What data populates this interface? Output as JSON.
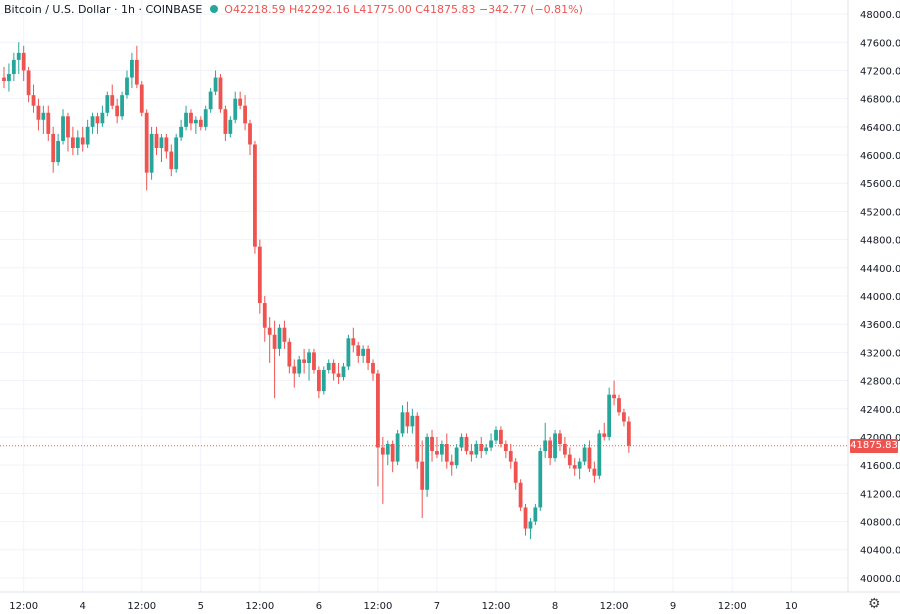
{
  "legend": {
    "symbol": "Bitcoin / U.S. Dollar · 1h · COINBASE",
    "ohlc": "O42218.59  H42292.16  L41775.00  C41875.83  −342.77 (−0.81%)"
  },
  "last_price_label": "41875.83",
  "colors": {
    "up": "#26a69a",
    "down": "#ef5350",
    "grid": "#f0f3fa",
    "axis_text": "#131722"
  },
  "settings_icon": "gear-icon",
  "chart_data": {
    "type": "candlestick",
    "title": "",
    "xlabel": "",
    "ylabel": "",
    "ylim": [
      39800,
      48200
    ],
    "y_ticks": [
      40000,
      40400,
      40800,
      41200,
      41600,
      42000,
      42400,
      42800,
      43200,
      43600,
      44000,
      44400,
      44800,
      45200,
      45600,
      46000,
      46400,
      46800,
      47200,
      47600,
      48000
    ],
    "y_tick_labels": [
      "40000.00",
      "40400.00",
      "40800.00",
      "41200.00",
      "41600.00",
      "42000.00",
      "42400.00",
      "42800.00",
      "43200.00",
      "43600.00",
      "44000.00",
      "44400.00",
      "44800.00",
      "45200.00",
      "45600.00",
      "46000.00",
      "46400.00",
      "46800.00",
      "47200.00",
      "47600.00",
      "48000.00"
    ],
    "x_ticks": [
      {
        "label": "12:00",
        "bar": 4
      },
      {
        "label": "4",
        "bar": 16
      },
      {
        "label": "12:00",
        "bar": 28
      },
      {
        "label": "5",
        "bar": 40
      },
      {
        "label": "12:00",
        "bar": 52
      },
      {
        "label": "6",
        "bar": 64
      },
      {
        "label": "12:00",
        "bar": 76
      },
      {
        "label": "7",
        "bar": 88
      },
      {
        "label": "12:00",
        "bar": 100
      },
      {
        "label": "8",
        "bar": 112
      },
      {
        "label": "12:00",
        "bar": 124
      },
      {
        "label": "9",
        "bar": 136
      },
      {
        "label": "12:00",
        "bar": 148
      },
      {
        "label": "10",
        "bar": 160
      }
    ],
    "last_price": 41875.83,
    "series": [
      {
        "values": [
          [
            47100,
            47250,
            46950,
            47050
          ],
          [
            47050,
            47300,
            46900,
            47150
          ],
          [
            47150,
            47450,
            47050,
            47350
          ],
          [
            47350,
            47600,
            47150,
            47450
          ],
          [
            47450,
            47550,
            47050,
            47200
          ],
          [
            47200,
            47250,
            46750,
            46850
          ],
          [
            46850,
            47000,
            46600,
            46700
          ],
          [
            46700,
            46800,
            46350,
            46500
          ],
          [
            46500,
            46700,
            46300,
            46600
          ],
          [
            46600,
            46700,
            46200,
            46300
          ],
          [
            46300,
            46400,
            45750,
            45900
          ],
          [
            45900,
            46300,
            45850,
            46200
          ],
          [
            46200,
            46650,
            46150,
            46550
          ],
          [
            46550,
            46600,
            46050,
            46250
          ],
          [
            46250,
            46400,
            46000,
            46100
          ],
          [
            46100,
            46350,
            46000,
            46250
          ],
          [
            46250,
            46400,
            46050,
            46150
          ],
          [
            46150,
            46500,
            46100,
            46400
          ],
          [
            46400,
            46600,
            46300,
            46550
          ],
          [
            46550,
            46600,
            46300,
            46450
          ],
          [
            46450,
            46700,
            46400,
            46600
          ],
          [
            46600,
            46900,
            46550,
            46850
          ],
          [
            46850,
            47000,
            46650,
            46700
          ],
          [
            46700,
            46800,
            46450,
            46550
          ],
          [
            46550,
            46900,
            46500,
            46850
          ],
          [
            46850,
            47200,
            46800,
            47100
          ],
          [
            47100,
            47450,
            46950,
            47350
          ],
          [
            47350,
            47550,
            46950,
            47000
          ],
          [
            47000,
            47050,
            46550,
            46600
          ],
          [
            46600,
            46650,
            45500,
            45750
          ],
          [
            45750,
            46400,
            45650,
            46300
          ],
          [
            46300,
            46400,
            46000,
            46100
          ],
          [
            46100,
            46300,
            45900,
            46250
          ],
          [
            46250,
            46300,
            45950,
            46050
          ],
          [
            46050,
            46150,
            45700,
            45800
          ],
          [
            45800,
            46300,
            45750,
            46250
          ],
          [
            46250,
            46500,
            46200,
            46400
          ],
          [
            46400,
            46700,
            46350,
            46600
          ],
          [
            46600,
            46650,
            46350,
            46450
          ],
          [
            46450,
            46550,
            46300,
            46500
          ],
          [
            46500,
            46550,
            46350,
            46400
          ],
          [
            46400,
            46700,
            46350,
            46650
          ],
          [
            46650,
            46950,
            46600,
            46900
          ],
          [
            46900,
            47200,
            46850,
            47100
          ],
          [
            47100,
            47150,
            46600,
            46650
          ],
          [
            46650,
            46700,
            46200,
            46300
          ],
          [
            46300,
            46550,
            46250,
            46500
          ],
          [
            46500,
            46900,
            46450,
            46800
          ],
          [
            46800,
            46900,
            46650,
            46700
          ],
          [
            46700,
            46850,
            46350,
            46450
          ],
          [
            46450,
            46500,
            46000,
            46150
          ],
          [
            46150,
            46200,
            44600,
            44700
          ],
          [
            44700,
            44800,
            43750,
            43900
          ],
          [
            43900,
            44000,
            43350,
            43550
          ],
          [
            43550,
            43700,
            43050,
            43450
          ],
          [
            43450,
            43650,
            42550,
            43250
          ],
          [
            43250,
            43600,
            43150,
            43550
          ],
          [
            43550,
            43650,
            43250,
            43350
          ],
          [
            43350,
            43400,
            42900,
            43000
          ],
          [
            43000,
            43100,
            42700,
            42900
          ],
          [
            42900,
            43150,
            42850,
            43100
          ],
          [
            43100,
            43250,
            42900,
            43050
          ],
          [
            43050,
            43250,
            42800,
            43200
          ],
          [
            43200,
            43250,
            42900,
            42950
          ],
          [
            42950,
            43000,
            42550,
            42650
          ],
          [
            42650,
            43000,
            42600,
            42950
          ],
          [
            42950,
            43100,
            42900,
            43050
          ],
          [
            43050,
            43100,
            42800,
            42900
          ],
          [
            42900,
            43050,
            42750,
            42850
          ],
          [
            42850,
            43050,
            42800,
            43000
          ],
          [
            43000,
            43450,
            42950,
            43400
          ],
          [
            43400,
            43550,
            43200,
            43300
          ],
          [
            43300,
            43350,
            43050,
            43150
          ],
          [
            43150,
            43300,
            43050,
            43250
          ],
          [
            43250,
            43300,
            42950,
            43050
          ],
          [
            43050,
            43100,
            42800,
            42900
          ],
          [
            42900,
            42950,
            41300,
            41850
          ],
          [
            41850,
            42000,
            41050,
            41750
          ],
          [
            41750,
            41950,
            41600,
            41900
          ],
          [
            41900,
            41950,
            41500,
            41650
          ],
          [
            41650,
            42100,
            41600,
            42050
          ],
          [
            42050,
            42450,
            42000,
            42350
          ],
          [
            42350,
            42500,
            42050,
            42150
          ],
          [
            42150,
            42400,
            42050,
            42300
          ],
          [
            42300,
            42350,
            41550,
            41650
          ],
          [
            41650,
            41950,
            40850,
            41250
          ],
          [
            41250,
            42050,
            41150,
            42000
          ],
          [
            42000,
            42100,
            41650,
            41800
          ],
          [
            41800,
            42000,
            41700,
            41750
          ],
          [
            41750,
            41950,
            41650,
            41900
          ],
          [
            41900,
            42050,
            41550,
            41650
          ],
          [
            41650,
            41750,
            41450,
            41600
          ],
          [
            41600,
            41900,
            41550,
            41850
          ],
          [
            41850,
            42050,
            41800,
            42000
          ],
          [
            42000,
            42050,
            41750,
            41800
          ],
          [
            41800,
            41900,
            41650,
            41750
          ],
          [
            41750,
            41950,
            41700,
            41900
          ],
          [
            41900,
            42000,
            41700,
            41800
          ],
          [
            41800,
            41900,
            41750,
            41850
          ],
          [
            41850,
            42050,
            41800,
            41950
          ],
          [
            41950,
            42150,
            41900,
            42100
          ],
          [
            42100,
            42150,
            41850,
            41900
          ],
          [
            41900,
            41950,
            41700,
            41800
          ],
          [
            41800,
            41900,
            41550,
            41650
          ],
          [
            41650,
            41700,
            41250,
            41350
          ],
          [
            41350,
            41400,
            40950,
            41000
          ],
          [
            41000,
            41050,
            40600,
            40700
          ],
          [
            40700,
            40850,
            40550,
            40800
          ],
          [
            40800,
            41050,
            40750,
            41000
          ],
          [
            41000,
            41850,
            40950,
            41800
          ],
          [
            41800,
            42200,
            41700,
            41950
          ],
          [
            41950,
            42000,
            41600,
            41700
          ],
          [
            41700,
            42100,
            41650,
            42050
          ],
          [
            42050,
            42100,
            41800,
            41900
          ],
          [
            41900,
            42000,
            41700,
            41750
          ],
          [
            41750,
            41850,
            41550,
            41600
          ],
          [
            41600,
            41700,
            41450,
            41550
          ],
          [
            41550,
            41700,
            41400,
            41650
          ],
          [
            41650,
            41900,
            41600,
            41850
          ],
          [
            41850,
            41950,
            41500,
            41550
          ],
          [
            41550,
            41650,
            41350,
            41450
          ],
          [
            41450,
            42100,
            41400,
            42050
          ],
          [
            42050,
            42200,
            41950,
            42000
          ],
          [
            42000,
            42700,
            41950,
            42600
          ],
          [
            42600,
            42800,
            42450,
            42550
          ],
          [
            42550,
            42600,
            42300,
            42350
          ],
          [
            42350,
            42400,
            42150,
            42218.59
          ],
          [
            42218.59,
            42292.16,
            41775,
            41875.83
          ]
        ]
      }
    ]
  }
}
